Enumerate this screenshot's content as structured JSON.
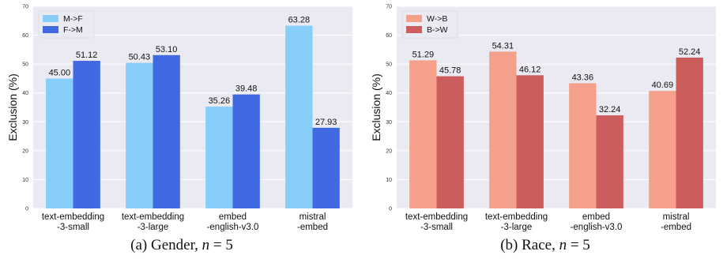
{
  "chart_data": [
    {
      "type": "bar",
      "panel": "a",
      "caption_label": "(a) Gender,",
      "caption_var": "n",
      "caption_eq": " = 5",
      "ylabel": "Exclusion (%)",
      "xlabel": "",
      "ylim": [
        0,
        70
      ],
      "yticks": [
        0,
        10,
        20,
        30,
        40,
        50,
        60,
        70
      ],
      "grid": true,
      "legend_position": "top-left",
      "categories": [
        [
          "text-embedding",
          "-3-small"
        ],
        [
          "text-embedding",
          "-3-large"
        ],
        [
          "embed",
          "-english-v3.0"
        ],
        [
          "mistral",
          "-embed"
        ]
      ],
      "series": [
        {
          "name": "M->F",
          "color": "#87CEFA",
          "values": [
            45.0,
            50.43,
            35.26,
            63.28
          ],
          "labels": [
            "45.00",
            "50.43",
            "35.26",
            "63.28"
          ]
        },
        {
          "name": "F->M",
          "color": "#4169E1",
          "values": [
            51.12,
            53.1,
            39.48,
            27.93
          ],
          "labels": [
            "51.12",
            "53.10",
            "39.48",
            "27.93"
          ]
        }
      ]
    },
    {
      "type": "bar",
      "panel": "b",
      "caption_label": "(b) Race,",
      "caption_var": "n",
      "caption_eq": " = 5",
      "ylabel": "Exclusion (%)",
      "xlabel": "",
      "ylim": [
        0,
        70
      ],
      "yticks": [
        0,
        10,
        20,
        30,
        40,
        50,
        60,
        70
      ],
      "grid": true,
      "legend_position": "top-left",
      "categories": [
        [
          "text-embedding",
          "-3-small"
        ],
        [
          "text-embedding",
          "-3-large"
        ],
        [
          "embed",
          "-english-v3.0"
        ],
        [
          "mistral",
          "-embed"
        ]
      ],
      "series": [
        {
          "name": "W->B",
          "color": "#F4A08A",
          "values": [
            51.29,
            54.31,
            43.36,
            40.69
          ],
          "labels": [
            "51.29",
            "54.31",
            "43.36",
            "40.69"
          ]
        },
        {
          "name": "B->W",
          "color": "#CD5C5C",
          "values": [
            45.78,
            46.12,
            32.24,
            52.24
          ],
          "labels": [
            "45.78",
            "46.12",
            "32.24",
            "52.24"
          ]
        }
      ]
    }
  ]
}
